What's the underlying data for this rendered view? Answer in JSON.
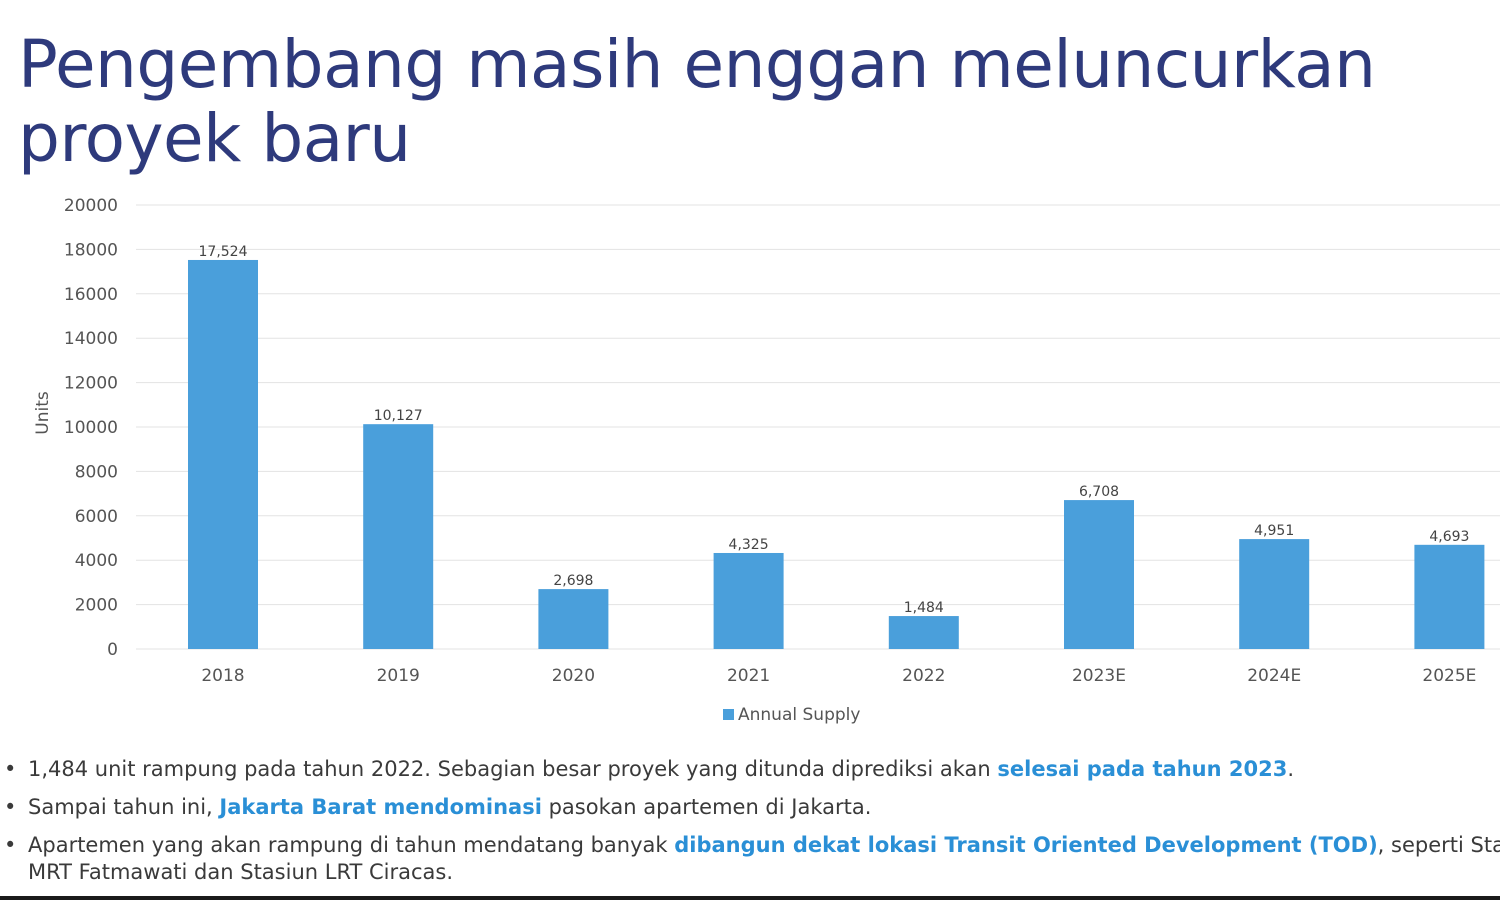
{
  "title": "Pengembang masih enggan meluncurkan proyek baru",
  "colors": {
    "bar": "#4a9fdb",
    "title": "#2e3a7c",
    "highlight": "#2a8fd6"
  },
  "chart_data": {
    "type": "bar",
    "categories": [
      "2018",
      "2019",
      "2020",
      "2021",
      "2022",
      "2023E",
      "2024E",
      "2025E"
    ],
    "series": [
      {
        "name": "Annual Supply",
        "values": [
          17524,
          10127,
          2698,
          4325,
          1484,
          6708,
          4951,
          4693
        ]
      }
    ],
    "data_labels": [
      "17,524",
      "10,127",
      "2,698",
      "4,325",
      "1,484",
      "6,708",
      "4,951",
      "4,693"
    ],
    "y_ticks": [
      "0",
      "2000",
      "4000",
      "6000",
      "8000",
      "10000",
      "12000",
      "14000",
      "16000",
      "18000",
      "20000"
    ],
    "ylim": [
      0,
      20000
    ],
    "ylabel": "Units",
    "xlabel": "",
    "grid": true,
    "legend": {
      "position": "bottom-center",
      "label": "Annual Supply"
    }
  },
  "bullets": [
    {
      "before": "1,484 unit rampung pada tahun 2022. Sebagian besar proyek yang ditunda diprediksi akan ",
      "highlight": "selesai pada tahun 2023",
      "after": "."
    },
    {
      "before": "Sampai tahun ini, ",
      "highlight": "Jakarta Barat mendominasi",
      "after": " pasokan apartemen di Jakarta."
    },
    {
      "before": "Apartemen yang akan rampung di tahun mendatang banyak ",
      "highlight": "dibangun dekat lokasi Transit Oriented Development (TOD)",
      "after": ", seperti Stasiun",
      "line2": "MRT Fatmawati dan Stasiun LRT Ciracas."
    }
  ]
}
